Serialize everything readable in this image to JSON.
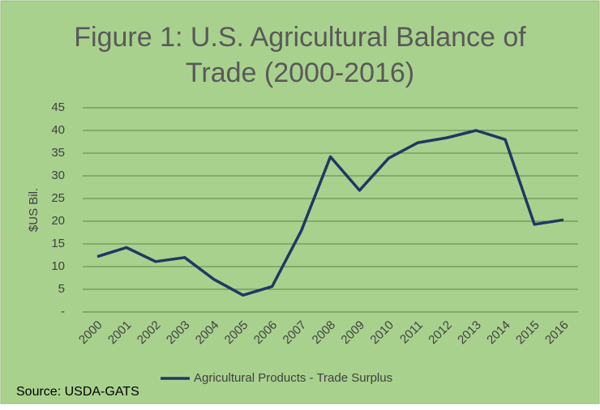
{
  "chart_data": {
    "type": "line",
    "title": [
      "Figure 1: U.S. Agricultural Balance of",
      "Trade (2000-2016)"
    ],
    "y_label": "$US Bil.",
    "source": "Source: USDA-GATS",
    "categories": [
      "2000",
      "2001",
      "2002",
      "2003",
      "2004",
      "2005",
      "2006",
      "2007",
      "2008",
      "2009",
      "2010",
      "2011",
      "2012",
      "2013",
      "2014",
      "2015",
      "2016"
    ],
    "series": [
      {
        "name": "Agricultural Products - Trade Surplus",
        "color": "#203864",
        "values": [
          12.2,
          14.2,
          11.1,
          12.0,
          7.2,
          3.7,
          5.6,
          17.9,
          34.2,
          26.8,
          33.9,
          37.3,
          38.4,
          40.0,
          38.0,
          19.3,
          20.3
        ]
      }
    ],
    "ylim": [
      0,
      45
    ],
    "yticks": [
      {
        "value": 0,
        "label": "-"
      },
      5,
      10,
      15,
      20,
      25,
      30,
      35,
      40,
      45
    ],
    "grid": true,
    "legend": "bottom"
  }
}
